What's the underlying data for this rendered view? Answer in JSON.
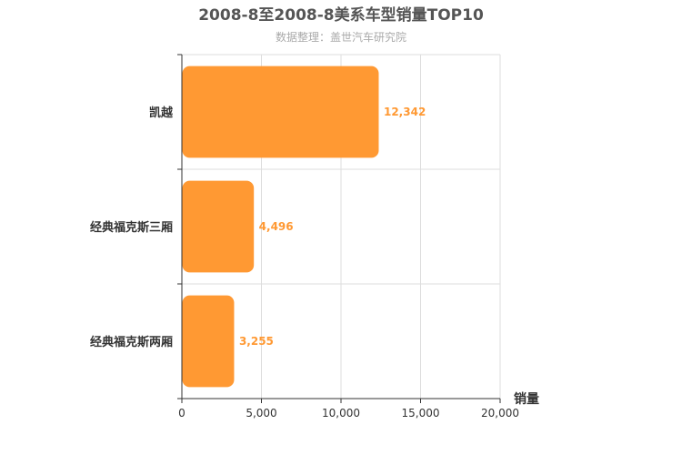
{
  "chart_data": {
    "type": "bar",
    "orientation": "horizontal",
    "title": "2008-8至2008-8美系车型销量TOP10",
    "subtitle": "数据整理：盖世汽车研究院",
    "categories": [
      "凯越",
      "经典福克斯三厢",
      "经典福克斯两厢"
    ],
    "values": [
      12342,
      4496,
      3255
    ],
    "value_labels": [
      "12,342",
      "4,496",
      "3,255"
    ],
    "xlabel": "销量",
    "xlim": [
      0,
      20000
    ],
    "x_ticks": [
      0,
      5000,
      10000,
      15000,
      20000
    ],
    "x_tick_labels": [
      "0",
      "5,000",
      "10,000",
      "15,000",
      "20,000"
    ],
    "grid": true,
    "bar_color": "#ff9933",
    "label_color": "#ff9933"
  }
}
